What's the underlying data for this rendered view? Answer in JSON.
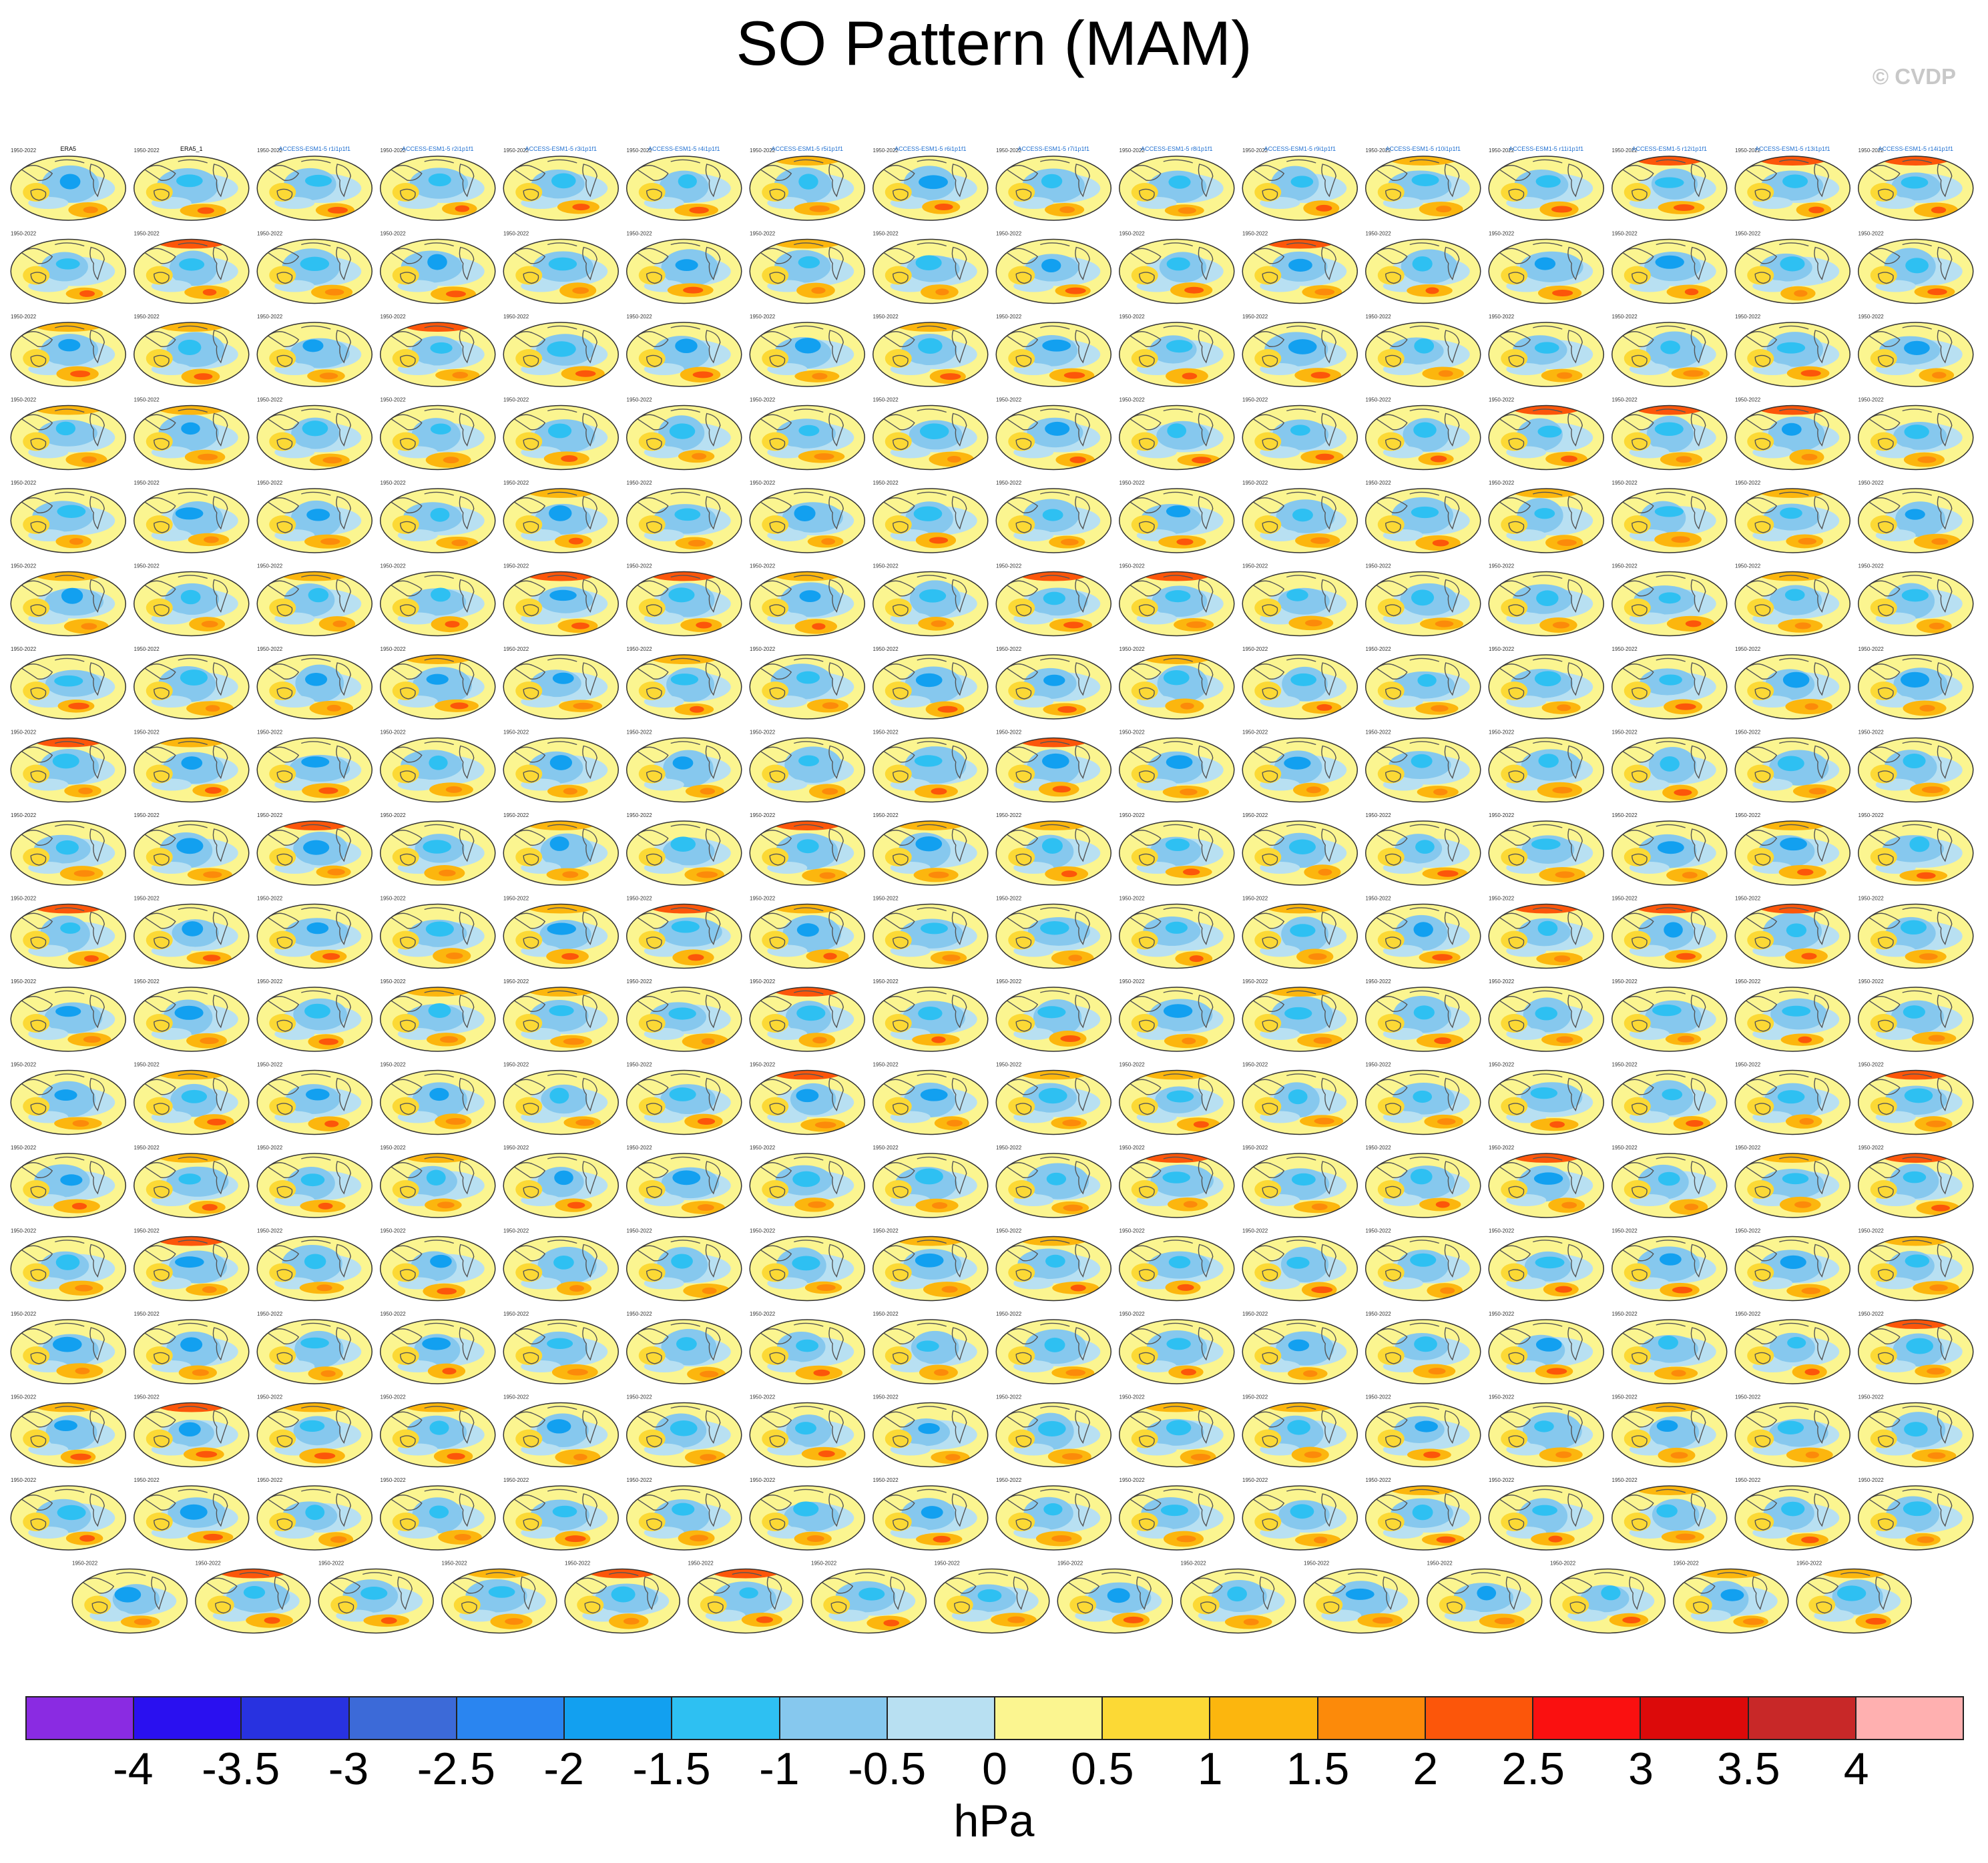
{
  "title": "SO Pattern (MAM)",
  "credit": "© CVDP",
  "chart_data": {
    "type": "heatmap",
    "title": "SO Pattern (MAM)",
    "grid": {
      "rows_full": 17,
      "cols": 16,
      "last_row_panels": 15
    },
    "panels": [
      {
        "label": "ERA5",
        "label_color": "#000000"
      },
      {
        "label": "ERA5_1",
        "label_color": "#000000"
      },
      {
        "label": "ACCESS-ESM1-5 r1i1p1f1",
        "label_color": "#1f6fd0"
      },
      {
        "label": "ACCESS-ESM1-5 r2i1p1f1",
        "label_color": "#1f6fd0"
      },
      {
        "label": "ACCESS-ESM1-5 r3i1p1f1",
        "label_color": "#1f6fd0"
      },
      {
        "label": "ACCESS-ESM1-5 r4i1p1f1",
        "label_color": "#1f6fd0"
      },
      {
        "label": "ACCESS-ESM1-5 r5i1p1f1",
        "label_color": "#1f6fd0"
      },
      {
        "label": "ACCESS-ESM1-5 r6i1p1f1",
        "label_color": "#1f6fd0"
      },
      {
        "label": "ACCESS-ESM1-5 r7i1p1f1",
        "label_color": "#1f6fd0"
      },
      {
        "label": "ACCESS-ESM1-5 r8i1p1f1",
        "label_color": "#1f6fd0"
      },
      {
        "label": "ACCESS-ESM1-5 r9i1p1f1",
        "label_color": "#1f6fd0"
      },
      {
        "label": "ACCESS-ESM1-5 r10i1p1f1",
        "label_color": "#1f6fd0"
      },
      {
        "label": "ACCESS-ESM1-5 r11i1p1f1",
        "label_color": "#1f6fd0"
      },
      {
        "label": "ACCESS-ESM1-5 r12i1p1f1",
        "label_color": "#1f6fd0"
      },
      {
        "label": "ACCESS-ESM1-5 r13i1p1f1",
        "label_color": "#1f6fd0"
      },
      {
        "label": "ACCESS-ESM1-5 r14i1p1f1",
        "label_color": "#1f6fd0"
      }
    ],
    "period_label": "1950-2022",
    "colorbar": {
      "unit": "hPa",
      "ticks": [
        "-4",
        "-3.5",
        "-3",
        "-2.5",
        "-2",
        "-1.5",
        "-1",
        "-0.5",
        "0",
        "0.5",
        "1",
        "1.5",
        "2",
        "2.5",
        "3",
        "3.5",
        "4"
      ],
      "colors": [
        "#8a2be2",
        "#2a10f0",
        "#2832e0",
        "#3c6ad8",
        "#2a85f0",
        "#12a0f0",
        "#2ec0f2",
        "#86c8ee",
        "#b8e0f2",
        "#fbf590",
        "#fcd935",
        "#fcb60e",
        "#fc8a0a",
        "#fc560a",
        "#fa1010",
        "#dc0a0a",
        "#c82828",
        "#ffb0b0"
      ],
      "range": [
        -4,
        4
      ]
    }
  }
}
